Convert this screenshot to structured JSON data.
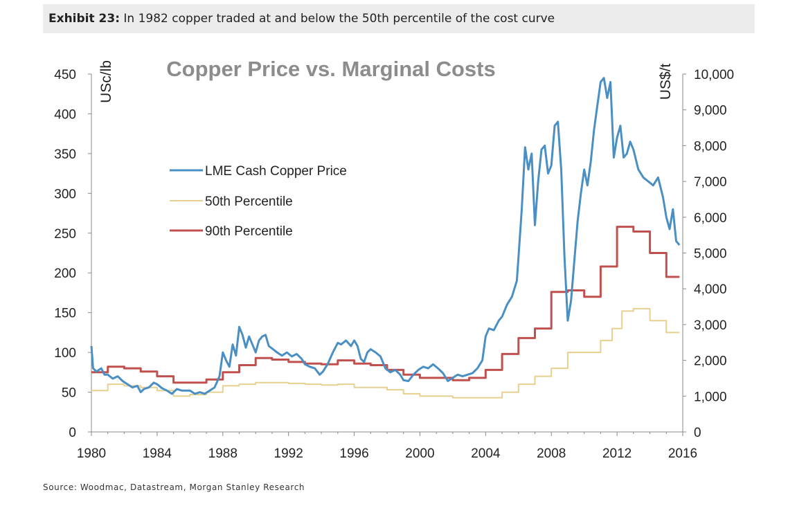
{
  "header": {
    "exhibit_label": "Exhibit 23:",
    "exhibit_text": "In 1982 copper traded at and below the 50th percentile of the cost curve"
  },
  "source": "Source: Woodmac, Datastream, Morgan Stanley Research",
  "chart_data": {
    "type": "line",
    "title": "Copper Price vs. Marginal Costs",
    "y_left_unit": "USc/lb",
    "y_right_unit": "US$/t",
    "xlim": [
      1980,
      2016
    ],
    "y_left_lim": [
      0,
      450
    ],
    "y_right_lim": [
      0,
      10000
    ],
    "x_ticks": [
      1980,
      1984,
      1988,
      1992,
      1996,
      2000,
      2004,
      2008,
      2012,
      2016
    ],
    "y_left_ticks": [
      0,
      50,
      100,
      150,
      200,
      250,
      300,
      350,
      400,
      450
    ],
    "y_right_ticks": [
      "0",
      "1,000",
      "2,000",
      "3,000",
      "4,000",
      "5,000",
      "6,000",
      "7,000",
      "8,000",
      "9,000",
      "10,000"
    ],
    "legend_position": "left-center",
    "series": [
      {
        "name": "LME Cash Copper Price",
        "color": "#4a8fc4",
        "style": "line",
        "points": [
          [
            1980.0,
            108
          ],
          [
            1980.1,
            80
          ],
          [
            1980.3,
            76
          ],
          [
            1980.6,
            80
          ],
          [
            1980.8,
            72
          ],
          [
            1981.0,
            72
          ],
          [
            1981.3,
            67
          ],
          [
            1981.6,
            70
          ],
          [
            1981.9,
            64
          ],
          [
            1982.2,
            60
          ],
          [
            1982.5,
            56
          ],
          [
            1982.8,
            58
          ],
          [
            1983.0,
            50
          ],
          [
            1983.2,
            54
          ],
          [
            1983.5,
            56
          ],
          [
            1983.8,
            62
          ],
          [
            1984.0,
            60
          ],
          [
            1984.3,
            55
          ],
          [
            1984.6,
            52
          ],
          [
            1984.9,
            48
          ],
          [
            1985.2,
            54
          ],
          [
            1985.5,
            52
          ],
          [
            1985.8,
            52
          ],
          [
            1986.0,
            52
          ],
          [
            1986.3,
            48
          ],
          [
            1986.6,
            50
          ],
          [
            1986.9,
            48
          ],
          [
            1987.2,
            52
          ],
          [
            1987.5,
            56
          ],
          [
            1987.8,
            70
          ],
          [
            1988.0,
            100
          ],
          [
            1988.2,
            90
          ],
          [
            1988.4,
            82
          ],
          [
            1988.6,
            110
          ],
          [
            1988.8,
            96
          ],
          [
            1989.0,
            132
          ],
          [
            1989.2,
            122
          ],
          [
            1989.4,
            106
          ],
          [
            1989.6,
            120
          ],
          [
            1989.8,
            110
          ],
          [
            1990.0,
            100
          ],
          [
            1990.2,
            115
          ],
          [
            1990.4,
            120
          ],
          [
            1990.6,
            122
          ],
          [
            1990.8,
            108
          ],
          [
            1991.0,
            105
          ],
          [
            1991.3,
            100
          ],
          [
            1991.6,
            96
          ],
          [
            1991.9,
            100
          ],
          [
            1992.2,
            95
          ],
          [
            1992.5,
            98
          ],
          [
            1992.8,
            92
          ],
          [
            1993.0,
            85
          ],
          [
            1993.3,
            82
          ],
          [
            1993.6,
            80
          ],
          [
            1993.9,
            72
          ],
          [
            1994.1,
            76
          ],
          [
            1994.4,
            86
          ],
          [
            1994.7,
            100
          ],
          [
            1995.0,
            112
          ],
          [
            1995.2,
            110
          ],
          [
            1995.5,
            115
          ],
          [
            1995.8,
            108
          ],
          [
            1996.0,
            115
          ],
          [
            1996.2,
            108
          ],
          [
            1996.4,
            92
          ],
          [
            1996.6,
            88
          ],
          [
            1996.8,
            100
          ],
          [
            1997.0,
            104
          ],
          [
            1997.3,
            100
          ],
          [
            1997.6,
            95
          ],
          [
            1997.9,
            80
          ],
          [
            1998.2,
            75
          ],
          [
            1998.5,
            78
          ],
          [
            1998.8,
            72
          ],
          [
            1999.0,
            65
          ],
          [
            1999.3,
            64
          ],
          [
            1999.6,
            72
          ],
          [
            1999.9,
            78
          ],
          [
            2000.2,
            82
          ],
          [
            2000.5,
            80
          ],
          [
            2000.8,
            85
          ],
          [
            2001.1,
            80
          ],
          [
            2001.4,
            74
          ],
          [
            2001.7,
            64
          ],
          [
            2002.0,
            68
          ],
          [
            2002.3,
            72
          ],
          [
            2002.6,
            70
          ],
          [
            2002.9,
            72
          ],
          [
            2003.2,
            74
          ],
          [
            2003.5,
            80
          ],
          [
            2003.8,
            90
          ],
          [
            2004.0,
            120
          ],
          [
            2004.2,
            130
          ],
          [
            2004.5,
            128
          ],
          [
            2004.8,
            140
          ],
          [
            2005.0,
            145
          ],
          [
            2005.3,
            160
          ],
          [
            2005.6,
            170
          ],
          [
            2005.9,
            190
          ],
          [
            2006.0,
            220
          ],
          [
            2006.2,
            280
          ],
          [
            2006.4,
            358
          ],
          [
            2006.6,
            330
          ],
          [
            2006.8,
            350
          ],
          [
            2007.0,
            260
          ],
          [
            2007.2,
            315
          ],
          [
            2007.4,
            355
          ],
          [
            2007.6,
            360
          ],
          [
            2007.8,
            325
          ],
          [
            2008.0,
            335
          ],
          [
            2008.2,
            385
          ],
          [
            2008.4,
            390
          ],
          [
            2008.6,
            330
          ],
          [
            2008.8,
            220
          ],
          [
            2009.0,
            140
          ],
          [
            2009.2,
            165
          ],
          [
            2009.4,
            215
          ],
          [
            2009.6,
            265
          ],
          [
            2009.8,
            300
          ],
          [
            2010.0,
            330
          ],
          [
            2010.2,
            310
          ],
          [
            2010.4,
            340
          ],
          [
            2010.6,
            380
          ],
          [
            2010.8,
            410
          ],
          [
            2011.0,
            440
          ],
          [
            2011.2,
            445
          ],
          [
            2011.4,
            420
          ],
          [
            2011.6,
            440
          ],
          [
            2011.8,
            345
          ],
          [
            2012.0,
            370
          ],
          [
            2012.2,
            385
          ],
          [
            2012.4,
            345
          ],
          [
            2012.6,
            350
          ],
          [
            2012.8,
            365
          ],
          [
            2013.0,
            355
          ],
          [
            2013.3,
            330
          ],
          [
            2013.6,
            320
          ],
          [
            2013.9,
            315
          ],
          [
            2014.2,
            310
          ],
          [
            2014.5,
            320
          ],
          [
            2014.8,
            295
          ],
          [
            2015.0,
            270
          ],
          [
            2015.2,
            255
          ],
          [
            2015.4,
            280
          ],
          [
            2015.6,
            240
          ],
          [
            2015.8,
            235
          ]
        ]
      },
      {
        "name": "50th Percentile",
        "color": "#e6cf8f",
        "style": "step",
        "points": [
          [
            1980,
            52
          ],
          [
            1981,
            60
          ],
          [
            1982,
            58
          ],
          [
            1983,
            56
          ],
          [
            1984,
            52
          ],
          [
            1985,
            45
          ],
          [
            1986,
            47
          ],
          [
            1987,
            50
          ],
          [
            1988,
            58
          ],
          [
            1989,
            60
          ],
          [
            1990,
            62
          ],
          [
            1992,
            61
          ],
          [
            1993,
            60
          ],
          [
            1994,
            59
          ],
          [
            1995,
            60
          ],
          [
            1996,
            56
          ],
          [
            1997,
            56
          ],
          [
            1998,
            53
          ],
          [
            1999,
            48
          ],
          [
            2000,
            45
          ],
          [
            2001,
            45
          ],
          [
            2002,
            43
          ],
          [
            2003,
            43
          ],
          [
            2005,
            50
          ],
          [
            2006,
            60
          ],
          [
            2007,
            70
          ],
          [
            2008,
            80
          ],
          [
            2009,
            100
          ],
          [
            2010,
            100
          ],
          [
            2011,
            115
          ],
          [
            2011.7,
            130
          ],
          [
            2012.3,
            152
          ],
          [
            2013,
            155
          ],
          [
            2014,
            140
          ],
          [
            2015,
            125
          ],
          [
            2015.8,
            125
          ]
        ]
      },
      {
        "name": "90th Percentile",
        "color": "#c0504d",
        "style": "step",
        "points": [
          [
            1980,
            75
          ],
          [
            1981,
            82
          ],
          [
            1982,
            80
          ],
          [
            1983,
            76
          ],
          [
            1984,
            70
          ],
          [
            1985,
            62
          ],
          [
            1986,
            62
          ],
          [
            1987,
            66
          ],
          [
            1988,
            75
          ],
          [
            1989,
            84
          ],
          [
            1990,
            93
          ],
          [
            1991,
            91
          ],
          [
            1992,
            88
          ],
          [
            1993,
            86
          ],
          [
            1994,
            85
          ],
          [
            1995,
            90
          ],
          [
            1996,
            86
          ],
          [
            1997,
            84
          ],
          [
            1998,
            78
          ],
          [
            1999,
            72
          ],
          [
            2000,
            68
          ],
          [
            2001,
            68
          ],
          [
            2002,
            65
          ],
          [
            2003,
            68
          ],
          [
            2004,
            78
          ],
          [
            2005,
            98
          ],
          [
            2006,
            118
          ],
          [
            2007,
            130
          ],
          [
            2008,
            176
          ],
          [
            2009,
            178
          ],
          [
            2010,
            170
          ],
          [
            2011,
            208
          ],
          [
            2012,
            258
          ],
          [
            2013,
            252
          ],
          [
            2014,
            225
          ],
          [
            2015,
            195
          ],
          [
            2015.8,
            195
          ]
        ]
      }
    ]
  }
}
